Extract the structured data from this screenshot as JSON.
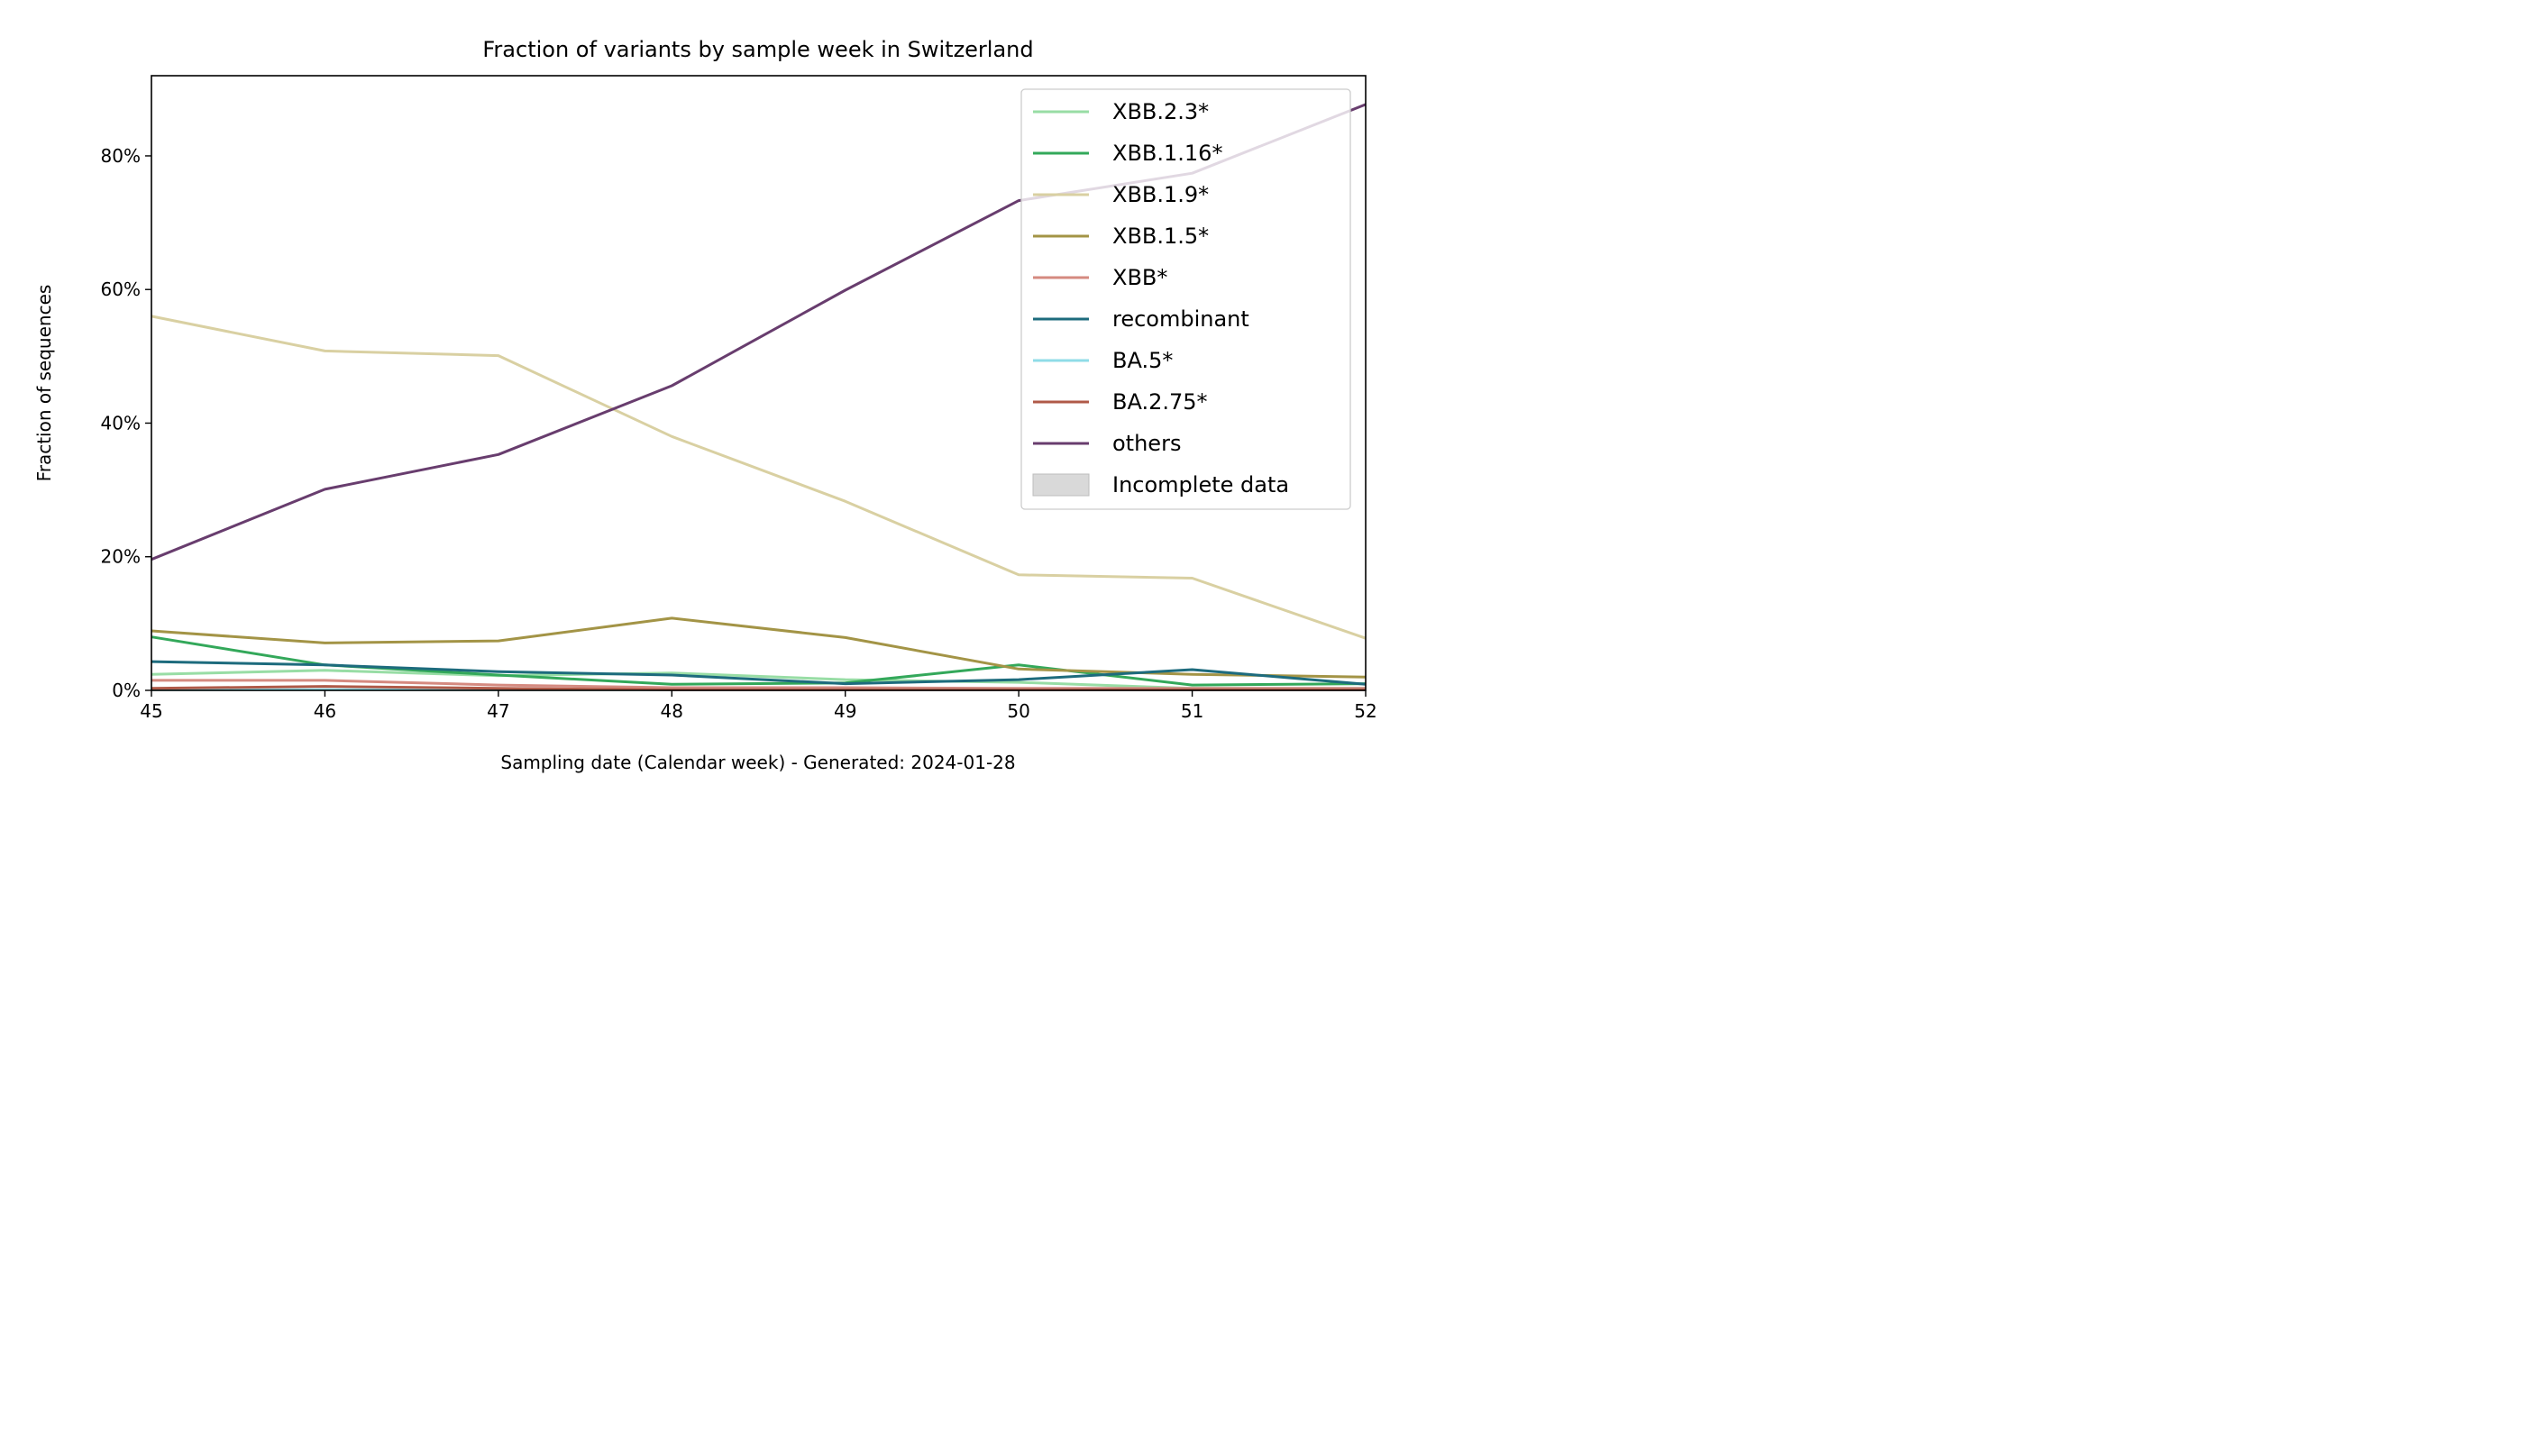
{
  "chart_data": {
    "type": "line",
    "title": "Fraction of variants by sample week in Switzerland",
    "xlabel": "Sampling date (Calendar week) - Generated: 2024-01-28",
    "ylabel": "Fraction of sequences",
    "x": [
      45,
      46,
      47,
      48,
      49,
      50,
      51,
      52
    ],
    "xlim": [
      45,
      52
    ],
    "ylim": [
      0,
      92
    ],
    "x_ticks": [
      "45",
      "46",
      "47",
      "48",
      "49",
      "50",
      "51",
      "52"
    ],
    "y_ticks": [
      {
        "value": 0,
        "label": "0%"
      },
      {
        "value": 20,
        "label": "20%"
      },
      {
        "value": 40,
        "label": "40%"
      },
      {
        "value": 60,
        "label": "60%"
      },
      {
        "value": 80,
        "label": "80%"
      }
    ],
    "grid": false,
    "legend_position": "top-right",
    "incomplete_data_label": "Incomplete data",
    "incomplete_data_color": "#d9d9d9",
    "series": [
      {
        "name": "XBB.2.3*",
        "color": "#98dda5",
        "values": [
          2.4,
          3.0,
          2.2,
          2.6,
          1.6,
          1.2,
          0.3,
          0.3
        ]
      },
      {
        "name": "XBB.1.16*",
        "color": "#33a85a",
        "values": [
          8.0,
          3.8,
          2.3,
          0.9,
          1.1,
          3.8,
          0.8,
          1.0
        ]
      },
      {
        "name": "XBB.1.9*",
        "color": "#d9d0a2",
        "values": [
          56.0,
          50.8,
          50.1,
          38.0,
          28.3,
          17.3,
          16.8,
          7.8
        ]
      },
      {
        "name": "XBB.1.5*",
        "color": "#a39446",
        "values": [
          8.9,
          7.1,
          7.4,
          10.8,
          7.9,
          3.2,
          2.4,
          2.0
        ]
      },
      {
        "name": "XBB*",
        "color": "#d58a80",
        "values": [
          1.5,
          1.5,
          0.8,
          0.4,
          0.4,
          0.3,
          0.3,
          0.3
        ]
      },
      {
        "name": "recombinant",
        "color": "#1d6b7d",
        "values": [
          4.3,
          3.8,
          2.8,
          2.3,
          1.0,
          1.6,
          3.1,
          0.9
        ]
      },
      {
        "name": "BA.5*",
        "color": "#8fdce7",
        "values": [
          0.1,
          0.1,
          0.1,
          0.1,
          0.1,
          0.1,
          0.1,
          0.1
        ]
      },
      {
        "name": "BA.2.75*",
        "color": "#b05a48",
        "values": [
          0.3,
          0.6,
          0.3,
          0.1,
          0.1,
          0.1,
          0.1,
          0.1
        ]
      },
      {
        "name": "others",
        "color": "#683d6e",
        "values": [
          19.6,
          30.1,
          35.3,
          45.6,
          59.9,
          73.3,
          77.4,
          87.7
        ]
      }
    ]
  }
}
